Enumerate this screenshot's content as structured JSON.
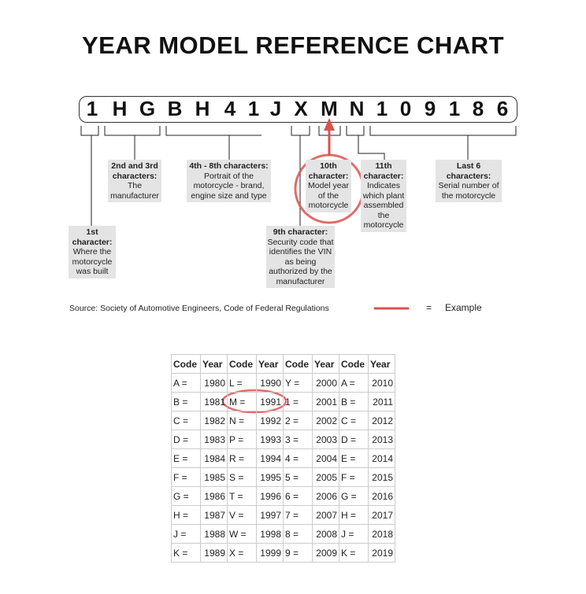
{
  "title": "YEAR MODEL REFERENCE CHART",
  "vin": [
    "1",
    "H",
    "G",
    "B",
    "H",
    "4",
    "1",
    "J",
    "X",
    "M",
    "N",
    "1",
    "0",
    "9",
    "1",
    "8",
    "6"
  ],
  "labels": {
    "first": {
      "head": "1st character:",
      "body": "Where the motorcycle was built"
    },
    "second_third": {
      "head": "2nd and 3rd characters:",
      "body": "The manufacturer"
    },
    "fourth_eighth": {
      "head": "4th - 8th characters:",
      "body": "Portrait of the motorcycle - brand, engine size and type"
    },
    "ninth": {
      "head": "9th character:",
      "body": "Security code that identifies the VIN as being authorized by the manufacturer"
    },
    "tenth": {
      "head": "10th character:",
      "body": "Model year of the motorcycle"
    },
    "eleventh": {
      "head": "11th character:",
      "body": "Indicates which plant assembled the motorcycle"
    },
    "last_six": {
      "head": "Last 6 characters:",
      "body": "Serial number of the motorcycle"
    }
  },
  "source": "Source:  Society of Automotive Engineers, Code of Federal Regulations",
  "legend": {
    "equals": "=",
    "label": "Example"
  },
  "colors": {
    "highlight": "#d9534f",
    "label_bg": "#e4e4e4"
  },
  "table": {
    "headers": [
      "Code",
      "Year",
      "Code",
      "Year",
      "Code",
      "Year",
      "Code",
      "Year"
    ],
    "rows": [
      [
        "A =",
        "1980",
        "L =",
        "1990",
        "Y =",
        "2000",
        "A =",
        "2010"
      ],
      [
        "B =",
        "1981",
        "M =",
        "1991",
        "1 =",
        "2001",
        "B =",
        "2011"
      ],
      [
        "C =",
        "1982",
        "N =",
        "1992",
        "2 =",
        "2002",
        "C =",
        "2012"
      ],
      [
        "D =",
        "1983",
        "P =",
        "1993",
        "3 =",
        "2003",
        "D =",
        "2013"
      ],
      [
        "E =",
        "1984",
        "R =",
        "1994",
        "4 =",
        "2004",
        "E =",
        "2014"
      ],
      [
        "F =",
        "1985",
        "S =",
        "1995",
        "5 =",
        "2005",
        "F =",
        "2015"
      ],
      [
        "G =",
        "1986",
        "T =",
        "1996",
        "6 =",
        "2006",
        "G =",
        "2016"
      ],
      [
        "H =",
        "1987",
        "V =",
        "1997",
        "7 =",
        "2007",
        "H =",
        "2017"
      ],
      [
        "J =",
        "1988",
        "W =",
        "1998",
        "8 =",
        "2008",
        "J =",
        "2018"
      ],
      [
        "K =",
        "1989",
        "X =",
        "1999",
        "9 =",
        "2009",
        "K =",
        "2019"
      ]
    ]
  }
}
